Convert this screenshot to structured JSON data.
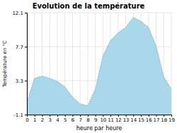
{
  "chart_data": {
    "type": "area",
    "title": "Evolution de la température",
    "x_label": "heure par heure",
    "y_label": "Température en °C",
    "x": [
      0,
      1,
      2,
      3,
      4,
      5,
      6,
      7,
      8,
      9,
      10,
      11,
      12,
      13,
      14,
      15,
      16,
      17,
      18,
      19
    ],
    "values": [
      0.5,
      3.6,
      3.9,
      3.6,
      3.2,
      2.5,
      1.2,
      0.3,
      0.05,
      2.2,
      6.5,
      8.5,
      9.5,
      10.2,
      11.5,
      11.0,
      10.2,
      7.8,
      3.8,
      2.2
    ],
    "color": "#a8d8ea",
    "line_style": "dotted",
    "xlim": [
      0,
      19
    ],
    "ylim": [
      -1.1,
      12.1
    ],
    "xticks": [
      0,
      1,
      2,
      3,
      4,
      5,
      6,
      7,
      8,
      9,
      10,
      11,
      12,
      13,
      14,
      15,
      16,
      17,
      18,
      19
    ],
    "yticks": [
      -1.1,
      3.3,
      7.7,
      12.1
    ],
    "grid": true
  }
}
